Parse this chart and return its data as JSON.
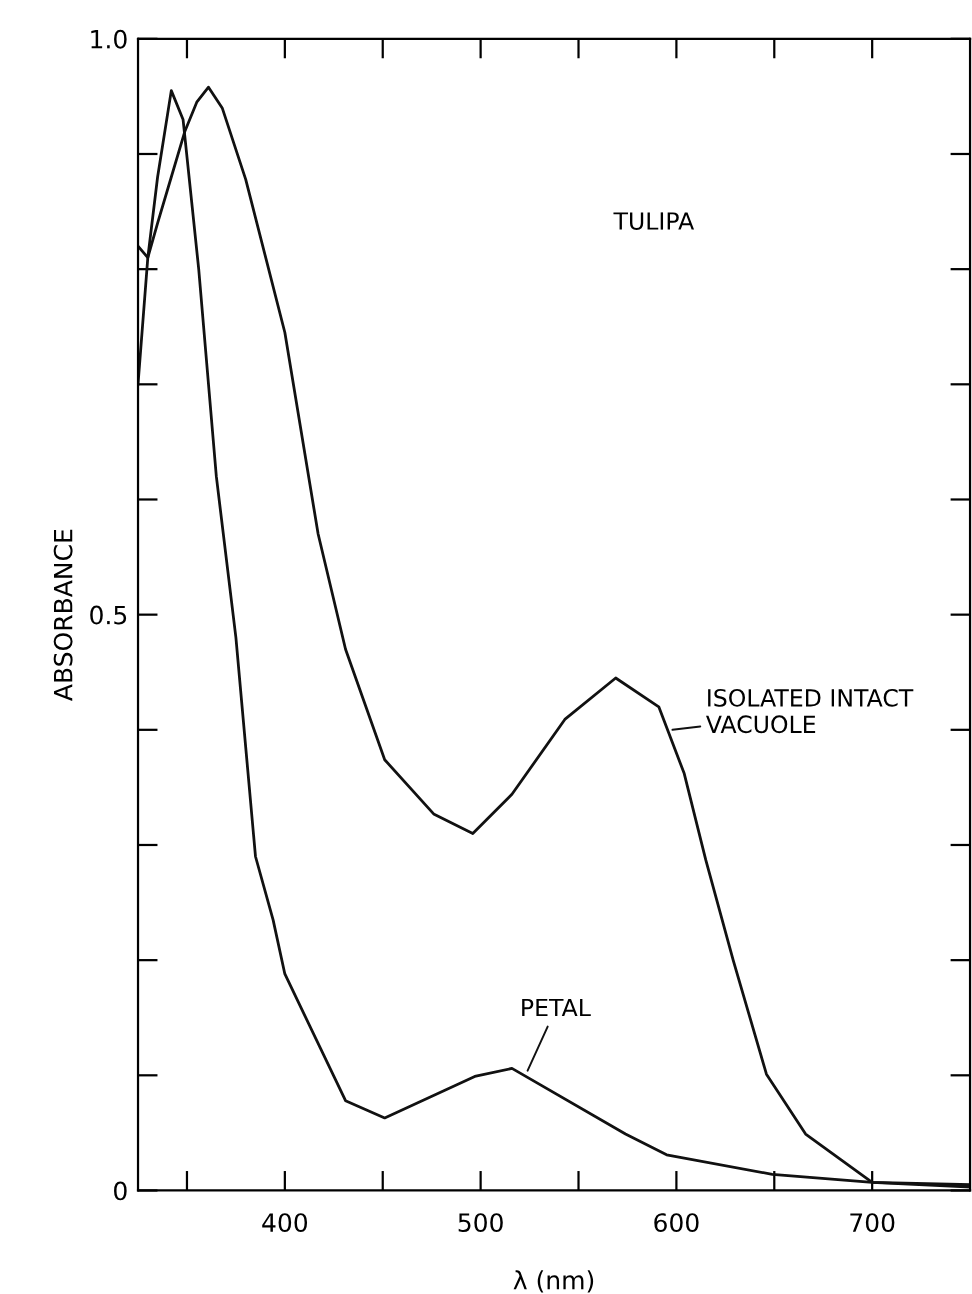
{
  "chart_data": {
    "type": "line",
    "xlabel": "λ (nm)",
    "ylabel": "ABSORBANCE",
    "xlim": [
      325,
      750
    ],
    "xticks": [
      {
        "value": 350,
        "label": null
      },
      400,
      {
        "value": 450,
        "label": null
      },
      500,
      {
        "value": 550,
        "label": null
      },
      600,
      {
        "value": 650,
        "label": null
      },
      700
    ],
    "ylim": [
      0,
      1.0
    ],
    "yticks": [
      {
        "value": 0,
        "label": "0"
      },
      {
        "value": 0.1,
        "label": null
      },
      {
        "value": 0.2,
        "label": null
      },
      {
        "value": 0.3,
        "label": null
      },
      {
        "value": 0.4,
        "label": null
      },
      0.5,
      {
        "value": 0.6,
        "label": null
      },
      {
        "value": 0.7,
        "label": null
      },
      {
        "value": 0.8,
        "label": null
      },
      {
        "value": 0.9,
        "label": null
      },
      {
        "value": 1.0,
        "label": "1.0"
      }
    ],
    "grid": false,
    "legend": false,
    "marker": "none",
    "line_style": "solid",
    "series": [
      {
        "color": "#111111",
        "x": [
          325,
          330,
          335,
          342,
          349,
          355,
          361,
          368,
          380,
          400,
          417,
          431,
          451,
          476,
          496,
          516,
          543,
          569,
          591,
          604,
          615,
          629,
          646,
          666,
          700,
          750
        ],
        "values": [
          0.82,
          0.81,
          0.84,
          0.88,
          0.92,
          0.945,
          0.958,
          0.94,
          0.878,
          0.745,
          0.57,
          0.47,
          0.374,
          0.327,
          0.31,
          0.344,
          0.409,
          0.445,
          0.42,
          0.362,
          0.287,
          0.2,
          0.101,
          0.049,
          0.007,
          0.005
        ]
      },
      {
        "color": "#111111",
        "x": [
          325,
          330,
          335,
          342,
          348,
          356,
          365,
          375,
          385,
          394,
          400,
          431,
          451,
          497,
          516,
          574,
          595,
          649,
          700,
          750
        ],
        "values": [
          0.7,
          0.81,
          0.88,
          0.955,
          0.93,
          0.8,
          0.62,
          0.48,
          0.29,
          0.235,
          0.188,
          0.078,
          0.063,
          0.099,
          0.106,
          0.049,
          0.031,
          0.014,
          0.007,
          0.003
        ]
      }
    ],
    "annotations": [
      "TULIPA",
      {
        "text": "ISOLATED INTACT\nVACUOLE",
        "x": 598,
        "y": 0.4
      },
      {
        "text": "PETAL",
        "x": 524,
        "y": 0.104
      }
    ]
  }
}
